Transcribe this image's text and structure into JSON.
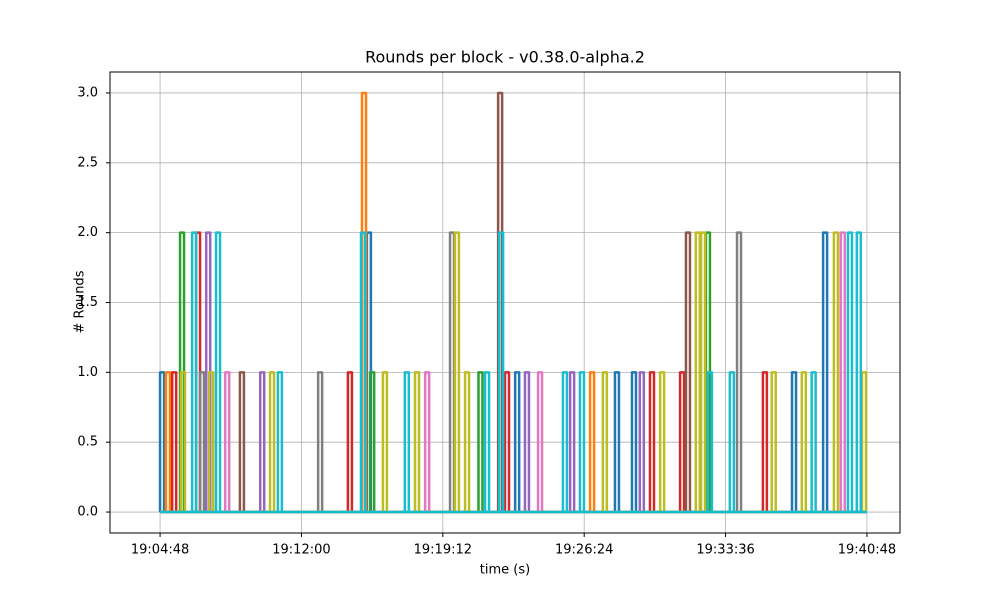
{
  "chart_data": {
    "type": "line",
    "title": "Rounds per block  -  v0.38.0-alpha.2",
    "xlabel": "time (s)",
    "ylabel": "# Rounds",
    "xlim": [
      "19:02:15",
      "19:42:29"
    ],
    "xticks": [
      "19:04:48",
      "19:12:00",
      "19:19:12",
      "19:26:24",
      "19:33:36",
      "19:40:48"
    ],
    "ylim": [
      -0.15,
      3.15
    ],
    "yticks": [
      {
        "value": 0,
        "label": "0.0"
      },
      {
        "value": 0.5,
        "label": "0.5"
      },
      {
        "value": 1,
        "label": "1.0"
      },
      {
        "value": 1.5,
        "label": "1.5"
      },
      {
        "value": 2,
        "label": "2.0"
      },
      {
        "value": 2.5,
        "label": "2.5"
      },
      {
        "value": 3,
        "label": "3.0"
      }
    ],
    "grid": true,
    "series": [
      {
        "color": "#1f77b4",
        "x": [
          "19:04:48",
          "19:15:20",
          "19:22:53",
          "19:27:58",
          "19:28:50",
          "19:36:59",
          "19:38:34"
        ],
        "values": [
          1,
          2,
          1,
          1,
          1,
          1,
          2
        ]
      },
      {
        "color": "#ff7f0e",
        "x": [
          "19:05:06",
          "19:15:05",
          "19:26:42"
        ],
        "values": [
          1,
          3,
          1
        ]
      },
      {
        "color": "#2ca02c",
        "x": [
          "19:05:49",
          "19:15:30",
          "19:21:01",
          "19:32:36"
        ],
        "values": [
          2,
          1,
          1,
          2
        ]
      },
      {
        "color": "#d62728",
        "x": [
          "19:05:25",
          "19:06:38",
          "19:14:22",
          "19:22:22",
          "19:29:45",
          "19:31:17",
          "19:35:30"
        ],
        "values": [
          1,
          2,
          1,
          1,
          1,
          1,
          1
        ]
      },
      {
        "color": "#9467bd",
        "x": [
          "19:07:09",
          "19:09:54",
          "19:23:23",
          "19:25:41",
          "19:29:14"
        ],
        "values": [
          2,
          1,
          1,
          1,
          1
        ]
      },
      {
        "color": "#8c564b",
        "x": [
          "19:08:52",
          "19:22:01",
          "19:31:35"
        ],
        "values": [
          1,
          3,
          2
        ]
      },
      {
        "color": "#e377c2",
        "x": [
          "19:08:07",
          "19:18:18",
          "19:24:03",
          "19:39:28"
        ],
        "values": [
          1,
          1,
          1,
          2
        ]
      },
      {
        "color": "#7f7f7f",
        "x": [
          "19:06:50",
          "19:12:51",
          "19:19:34",
          "19:34:11"
        ],
        "values": [
          1,
          1,
          2,
          2
        ]
      },
      {
        "color": "#bcbd22",
        "x": [
          "19:05:52",
          "19:07:18",
          "19:10:24",
          "19:16:09",
          "19:17:47",
          "19:19:49",
          "19:20:20",
          "19:27:21",
          "19:30:16",
          "19:32:05",
          "19:32:21",
          "19:35:57",
          "19:37:29",
          "19:39:07",
          "19:40:33"
        ],
        "values": [
          1,
          1,
          1,
          1,
          1,
          2,
          1,
          1,
          1,
          2,
          2,
          1,
          1,
          2,
          1
        ]
      },
      {
        "color": "#17becf",
        "x": [
          "19:06:26",
          "19:07:39",
          "19:10:48",
          "19:15:02",
          "19:17:16",
          "19:21:21",
          "19:22:04",
          "19:25:19",
          "19:26:11",
          "19:32:42",
          "19:33:49",
          "19:37:59",
          "19:39:50",
          "19:40:17"
        ],
        "values": [
          2,
          2,
          1,
          2,
          1,
          1,
          2,
          1,
          1,
          1,
          1,
          1,
          2,
          2
        ]
      }
    ]
  }
}
